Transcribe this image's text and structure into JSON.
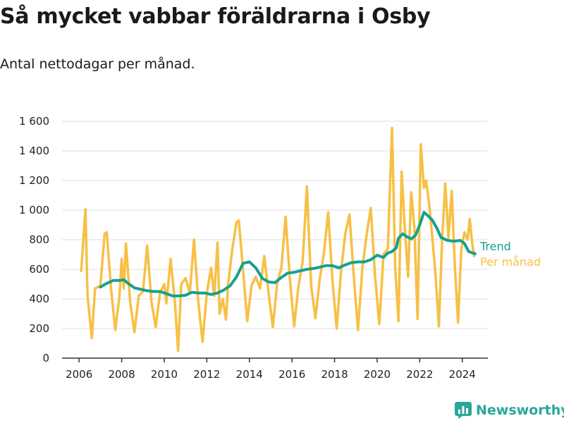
{
  "title": "Så mycket vabbar föräldrarna i Osby",
  "subtitle": "Antal nettodagar per månad.",
  "brand": "Newsworthy",
  "colors": {
    "trend": "#16a090",
    "per_month": "#f7c045",
    "grid": "#dddddd",
    "axis": "#333333"
  },
  "chart_data": {
    "type": "line",
    "title": "Så mycket vabbar föräldrarna i Osby",
    "subtitle": "Antal nettodagar per månad.",
    "xlabel": "",
    "ylabel": "",
    "xlim": [
      2005.2,
      2025.2
    ],
    "ylim": [
      0,
      1600
    ],
    "x_ticks": [
      2006,
      2008,
      2010,
      2012,
      2014,
      2016,
      2018,
      2020,
      2022,
      2024
    ],
    "y_ticks": [
      0,
      200,
      400,
      600,
      800,
      1000,
      1200,
      1400,
      1600
    ],
    "y_tick_labels": [
      "0",
      "200",
      "400",
      "600",
      "800",
      "1 000",
      "1 200",
      "1 400",
      "1 600"
    ],
    "grid": "horizontal",
    "legend": "right, at line ends",
    "series": [
      {
        "name": "Per månad",
        "color": "#f7c045",
        "points": [
          [
            2006.1,
            590
          ],
          [
            2006.3,
            1005
          ],
          [
            2006.4,
            420
          ],
          [
            2006.6,
            135
          ],
          [
            2006.75,
            470
          ],
          [
            2007.0,
            490
          ],
          [
            2007.2,
            840
          ],
          [
            2007.3,
            850
          ],
          [
            2007.5,
            470
          ],
          [
            2007.7,
            190
          ],
          [
            2007.9,
            420
          ],
          [
            2008.0,
            670
          ],
          [
            2008.1,
            470
          ],
          [
            2008.2,
            775
          ],
          [
            2008.4,
            380
          ],
          [
            2008.6,
            175
          ],
          [
            2008.8,
            420
          ],
          [
            2009.0,
            450
          ],
          [
            2009.2,
            760
          ],
          [
            2009.4,
            380
          ],
          [
            2009.6,
            210
          ],
          [
            2009.8,
            440
          ],
          [
            2010.0,
            500
          ],
          [
            2010.1,
            370
          ],
          [
            2010.3,
            670
          ],
          [
            2010.5,
            380
          ],
          [
            2010.65,
            50
          ],
          [
            2010.8,
            500
          ],
          [
            2011.0,
            540
          ],
          [
            2011.2,
            440
          ],
          [
            2011.4,
            800
          ],
          [
            2011.6,
            380
          ],
          [
            2011.8,
            110
          ],
          [
            2012.0,
            440
          ],
          [
            2012.2,
            610
          ],
          [
            2012.35,
            420
          ],
          [
            2012.5,
            780
          ],
          [
            2012.6,
            300
          ],
          [
            2012.75,
            400
          ],
          [
            2012.9,
            260
          ],
          [
            2013.0,
            500
          ],
          [
            2013.2,
            740
          ],
          [
            2013.4,
            920
          ],
          [
            2013.5,
            930
          ],
          [
            2013.7,
            600
          ],
          [
            2013.9,
            250
          ],
          [
            2014.1,
            490
          ],
          [
            2014.3,
            550
          ],
          [
            2014.5,
            470
          ],
          [
            2014.7,
            690
          ],
          [
            2014.9,
            440
          ],
          [
            2015.1,
            210
          ],
          [
            2015.3,
            500
          ],
          [
            2015.5,
            610
          ],
          [
            2015.7,
            955
          ],
          [
            2015.9,
            540
          ],
          [
            2016.1,
            215
          ],
          [
            2016.3,
            480
          ],
          [
            2016.5,
            650
          ],
          [
            2016.7,
            1160
          ],
          [
            2016.9,
            490
          ],
          [
            2017.1,
            270
          ],
          [
            2017.3,
            530
          ],
          [
            2017.5,
            710
          ],
          [
            2017.7,
            985
          ],
          [
            2017.9,
            530
          ],
          [
            2018.1,
            200
          ],
          [
            2018.3,
            580
          ],
          [
            2018.5,
            840
          ],
          [
            2018.7,
            970
          ],
          [
            2018.9,
            560
          ],
          [
            2019.1,
            190
          ],
          [
            2019.3,
            600
          ],
          [
            2019.5,
            830
          ],
          [
            2019.7,
            1015
          ],
          [
            2019.9,
            560
          ],
          [
            2020.1,
            230
          ],
          [
            2020.3,
            700
          ],
          [
            2020.5,
            740
          ],
          [
            2020.7,
            1555
          ],
          [
            2020.85,
            610
          ],
          [
            2021.0,
            250
          ],
          [
            2021.15,
            1260
          ],
          [
            2021.3,
            880
          ],
          [
            2021.45,
            550
          ],
          [
            2021.6,
            1120
          ],
          [
            2021.75,
            880
          ],
          [
            2021.9,
            265
          ],
          [
            2022.05,
            1445
          ],
          [
            2022.2,
            1150
          ],
          [
            2022.3,
            1200
          ],
          [
            2022.45,
            1030
          ],
          [
            2022.6,
            800
          ],
          [
            2022.75,
            550
          ],
          [
            2022.9,
            215
          ],
          [
            2023.05,
            800
          ],
          [
            2023.2,
            1180
          ],
          [
            2023.35,
            810
          ],
          [
            2023.5,
            1130
          ],
          [
            2023.65,
            620
          ],
          [
            2023.8,
            240
          ],
          [
            2023.95,
            730
          ],
          [
            2024.1,
            850
          ],
          [
            2024.25,
            800
          ],
          [
            2024.35,
            940
          ],
          [
            2024.45,
            790
          ],
          [
            2024.55,
            690
          ]
        ]
      },
      {
        "name": "Trend",
        "color": "#16a090",
        "points": [
          [
            2007.0,
            480
          ],
          [
            2007.3,
            505
          ],
          [
            2007.6,
            525
          ],
          [
            2007.9,
            525
          ],
          [
            2008.1,
            530
          ],
          [
            2008.3,
            505
          ],
          [
            2008.6,
            475
          ],
          [
            2008.9,
            465
          ],
          [
            2009.2,
            455
          ],
          [
            2009.5,
            450
          ],
          [
            2009.8,
            450
          ],
          [
            2010.1,
            435
          ],
          [
            2010.4,
            420
          ],
          [
            2010.7,
            420
          ],
          [
            2011.0,
            425
          ],
          [
            2011.3,
            445
          ],
          [
            2011.6,
            440
          ],
          [
            2011.9,
            440
          ],
          [
            2012.2,
            430
          ],
          [
            2012.5,
            440
          ],
          [
            2012.8,
            460
          ],
          [
            2013.1,
            490
          ],
          [
            2013.4,
            550
          ],
          [
            2013.7,
            640
          ],
          [
            2014.0,
            650
          ],
          [
            2014.3,
            610
          ],
          [
            2014.6,
            540
          ],
          [
            2014.9,
            515
          ],
          [
            2015.2,
            510
          ],
          [
            2015.5,
            545
          ],
          [
            2015.8,
            575
          ],
          [
            2016.1,
            580
          ],
          [
            2016.4,
            590
          ],
          [
            2016.7,
            600
          ],
          [
            2017.0,
            605
          ],
          [
            2017.3,
            615
          ],
          [
            2017.6,
            625
          ],
          [
            2017.9,
            625
          ],
          [
            2018.2,
            610
          ],
          [
            2018.5,
            630
          ],
          [
            2018.8,
            645
          ],
          [
            2019.1,
            650
          ],
          [
            2019.4,
            650
          ],
          [
            2019.7,
            665
          ],
          [
            2020.0,
            695
          ],
          [
            2020.3,
            680
          ],
          [
            2020.5,
            710
          ],
          [
            2020.7,
            720
          ],
          [
            2020.9,
            745
          ],
          [
            2021.0,
            810
          ],
          [
            2021.2,
            840
          ],
          [
            2021.4,
            820
          ],
          [
            2021.6,
            805
          ],
          [
            2021.8,
            830
          ],
          [
            2022.0,
            900
          ],
          [
            2022.2,
            985
          ],
          [
            2022.4,
            960
          ],
          [
            2022.6,
            930
          ],
          [
            2022.8,
            880
          ],
          [
            2023.0,
            815
          ],
          [
            2023.3,
            795
          ],
          [
            2023.6,
            790
          ],
          [
            2023.9,
            795
          ],
          [
            2024.1,
            775
          ],
          [
            2024.3,
            720
          ],
          [
            2024.6,
            705
          ]
        ]
      }
    ]
  }
}
